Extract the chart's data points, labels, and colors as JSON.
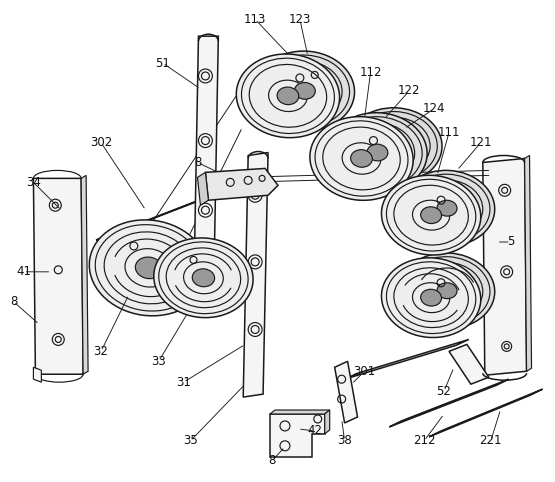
{
  "background_color": "#ffffff",
  "line_color": "#1a1a1a",
  "line_color2": "#444444",
  "figsize": [
    5.55,
    4.82
  ],
  "dpi": 100,
  "plate_fill": "#f5f5f5",
  "disc_fill": "#eeeeee",
  "disc_fill2": "#e0e0e0",
  "dark_fill": "#999999",
  "labels": [
    [
      "113",
      255,
      18
    ],
    [
      "123",
      295,
      18
    ],
    [
      "51",
      162,
      62
    ],
    [
      "112",
      371,
      72
    ],
    [
      "122",
      407,
      90
    ],
    [
      "124",
      432,
      108
    ],
    [
      "302",
      100,
      142
    ],
    [
      "8",
      197,
      162
    ],
    [
      "111",
      447,
      132
    ],
    [
      "121",
      480,
      142
    ],
    [
      "34",
      32,
      182
    ],
    [
      "5",
      510,
      242
    ],
    [
      "41",
      22,
      272
    ],
    [
      "8",
      12,
      302
    ],
    [
      "32",
      100,
      352
    ],
    [
      "33",
      158,
      362
    ],
    [
      "31",
      183,
      383
    ],
    [
      "35",
      190,
      442
    ],
    [
      "42",
      312,
      432
    ],
    [
      "8",
      272,
      462
    ],
    [
      "38",
      342,
      442
    ],
    [
      "301",
      362,
      372
    ],
    [
      "52",
      443,
      392
    ],
    [
      "212",
      422,
      442
    ],
    [
      "221",
      490,
      442
    ]
  ]
}
